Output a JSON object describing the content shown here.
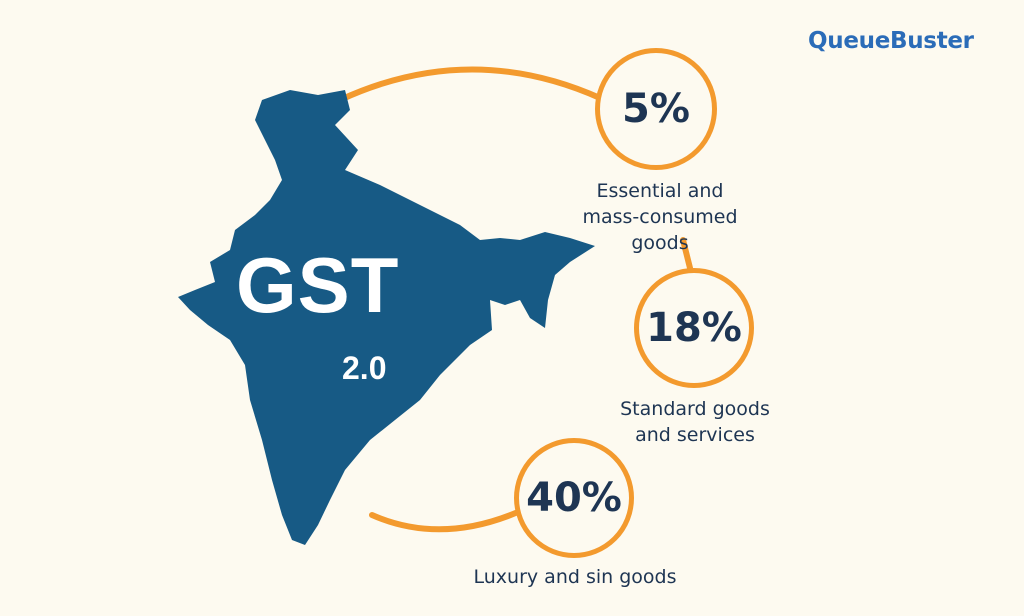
{
  "brand": {
    "logo": "QueueBuster",
    "color": "#2b6cb8"
  },
  "map": {
    "title": "GST",
    "version": "2.0",
    "color": "#175a85"
  },
  "accent_color": "#f39a2e",
  "rates": [
    {
      "rate": "5%",
      "description_line1": "Essential and",
      "description_line2": "mass-consumed goods"
    },
    {
      "rate": "18%",
      "description_line1": "Standard goods",
      "description_line2": "and services"
    },
    {
      "rate": "40%",
      "description_line1": "Luxury and sin goods",
      "description_line2": ""
    }
  ]
}
